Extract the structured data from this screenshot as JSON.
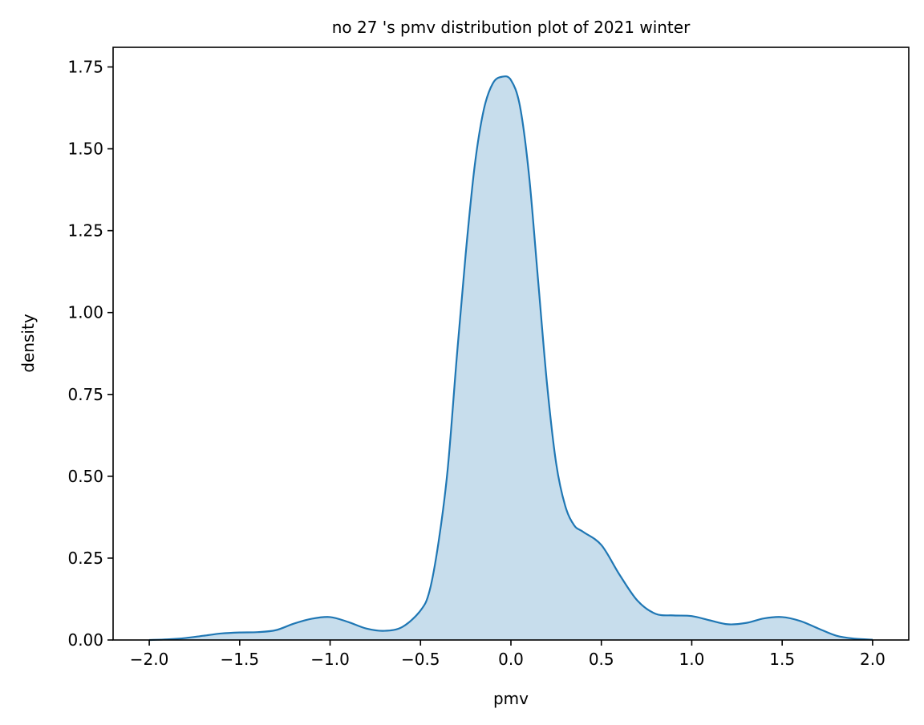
{
  "chart_data": {
    "type": "area",
    "title": "no 27 's pmv distribution plot of 2021 winter",
    "xlabel": "pmv",
    "ylabel": "density",
    "xlim": [
      -2.2,
      2.2
    ],
    "ylim": [
      0,
      1.81
    ],
    "xticks": [
      -2.0,
      -1.5,
      -1.0,
      -0.5,
      0.0,
      0.5,
      1.0,
      1.5,
      2.0
    ],
    "xtick_labels": [
      "−2.0",
      "−1.5",
      "−1.0",
      "−0.5",
      "0.0",
      "0.5",
      "1.0",
      "1.5",
      "2.0"
    ],
    "yticks": [
      0.0,
      0.25,
      0.5,
      0.75,
      1.0,
      1.25,
      1.5,
      1.75
    ],
    "ytick_labels": [
      "0.00",
      "0.25",
      "0.50",
      "0.75",
      "1.00",
      "1.25",
      "1.50",
      "1.75"
    ],
    "grid": false,
    "colors": {
      "line": "#1f77b4",
      "fill": "#1f77b4"
    },
    "series": [
      {
        "x": [
          -2.0,
          -1.9,
          -1.8,
          -1.7,
          -1.6,
          -1.5,
          -1.4,
          -1.3,
          -1.2,
          -1.1,
          -1.0,
          -0.9,
          -0.8,
          -0.7,
          -0.6,
          -0.5,
          -0.45,
          -0.4,
          -0.35,
          -0.3,
          -0.25,
          -0.2,
          -0.15,
          -0.1,
          -0.05,
          0.0,
          0.05,
          0.1,
          0.15,
          0.2,
          0.25,
          0.3,
          0.35,
          0.4,
          0.5,
          0.6,
          0.7,
          0.8,
          0.9,
          1.0,
          1.1,
          1.2,
          1.3,
          1.4,
          1.5,
          1.6,
          1.7,
          1.8,
          1.9,
          2.0
        ],
        "y": [
          0.0,
          0.002,
          0.006,
          0.013,
          0.02,
          0.023,
          0.024,
          0.03,
          0.05,
          0.065,
          0.07,
          0.055,
          0.035,
          0.028,
          0.04,
          0.09,
          0.15,
          0.3,
          0.52,
          0.86,
          1.18,
          1.45,
          1.62,
          1.7,
          1.72,
          1.71,
          1.63,
          1.42,
          1.1,
          0.78,
          0.54,
          0.41,
          0.35,
          0.33,
          0.29,
          0.2,
          0.12,
          0.08,
          0.075,
          0.073,
          0.06,
          0.048,
          0.052,
          0.066,
          0.07,
          0.058,
          0.035,
          0.013,
          0.004,
          0.001
        ]
      }
    ]
  }
}
